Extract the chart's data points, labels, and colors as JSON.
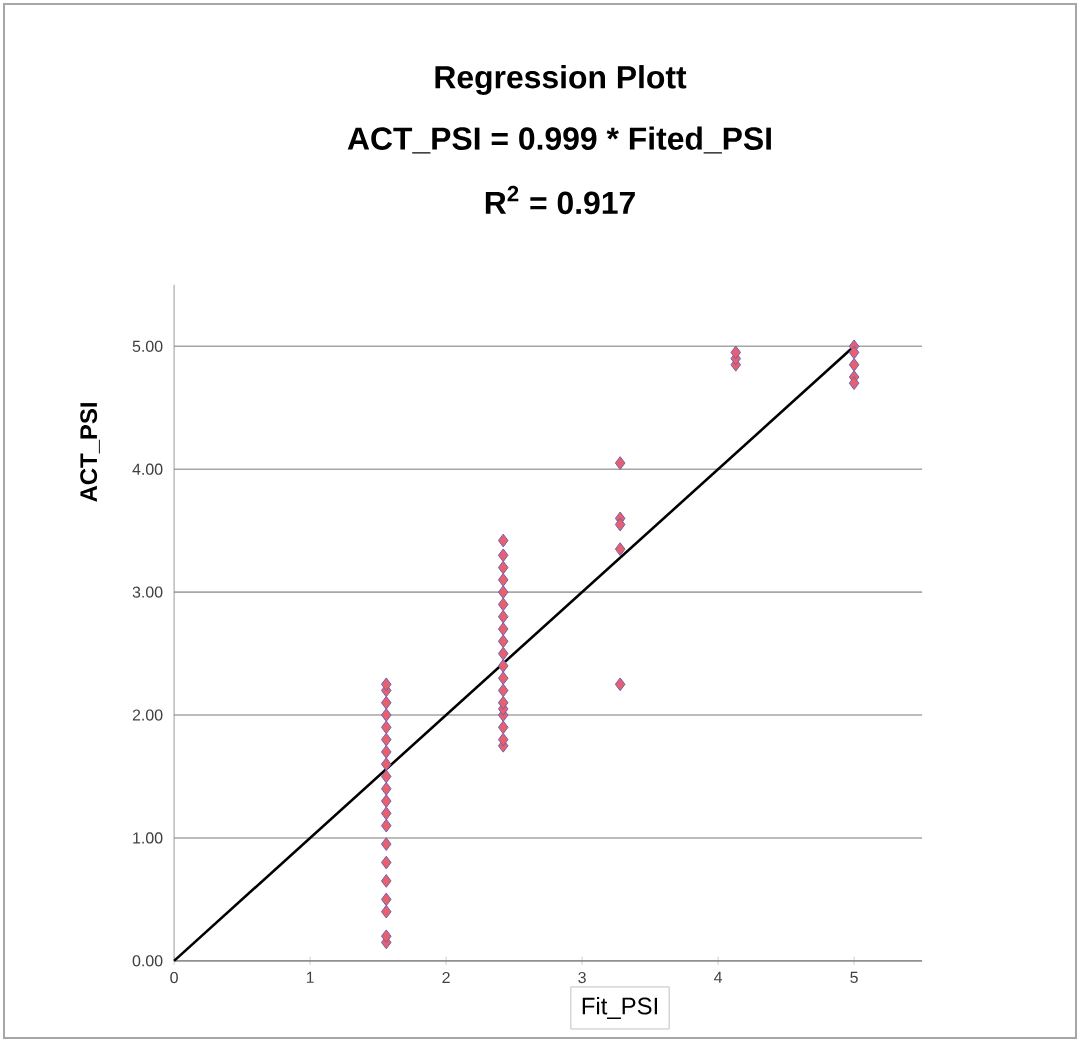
{
  "chart_data": {
    "type": "scatter",
    "title": "Regression Plott",
    "subtitle": "ACT_PSI = 0.999 * Fited_PSI",
    "annotations": [
      "R$^{2}$ = 0.917"
    ],
    "xlabel": "Fit_PSI",
    "ylabel": "ACT_PSI",
    "xlim": [
      0,
      5.5
    ],
    "ylim": [
      0,
      5.5
    ],
    "xticks": [
      0,
      1,
      2,
      3,
      4,
      5
    ],
    "yticks": [
      {
        "value": 0,
        "label": "0.00"
      },
      {
        "value": 1,
        "label": "1.00"
      },
      {
        "value": 2,
        "label": "2.00"
      },
      {
        "value": 3,
        "label": "3.00"
      },
      {
        "value": 4,
        "label": "4.00"
      },
      {
        "value": 5,
        "label": "5.00"
      }
    ],
    "grid": "y",
    "marker": "diamond",
    "series": [
      {
        "color": "#e8606e",
        "x": [
          1.56,
          1.56,
          1.56,
          1.56,
          1.56,
          1.56,
          1.56,
          1.56,
          1.56,
          1.56,
          1.56,
          1.56,
          1.56,
          1.56,
          1.56,
          1.56,
          1.56,
          1.56,
          1.56,
          1.56,
          2.42,
          2.42,
          2.42,
          2.42,
          2.42,
          2.42,
          2.42,
          2.42,
          2.42,
          2.42,
          2.42,
          2.42,
          2.42,
          2.42,
          2.42,
          2.42,
          2.42,
          2.42,
          2.42,
          3.28,
          3.28,
          3.28,
          3.28,
          3.28,
          4.13,
          4.13,
          4.13,
          5,
          5,
          5,
          5,
          5
        ],
        "values": [
          0.15,
          0.2,
          0.4,
          0.5,
          0.65,
          0.8,
          0.95,
          1.1,
          1.2,
          1.3,
          1.4,
          1.5,
          1.6,
          1.7,
          1.8,
          1.9,
          2.0,
          2.1,
          2.2,
          2.25,
          1.75,
          1.8,
          1.9,
          2.0,
          2.05,
          2.1,
          2.2,
          2.3,
          2.4,
          2.5,
          2.6,
          2.7,
          2.8,
          2.9,
          3.0,
          3.1,
          3.2,
          3.3,
          3.42,
          4.05,
          3.6,
          3.55,
          3.35,
          2.25,
          4.85,
          4.9,
          4.95,
          5.0,
          4.95,
          4.85,
          4.75,
          4.7
        ]
      },
      {
        "type": "line",
        "color": "#000000",
        "marker": "none",
        "x": [
          0,
          5
        ],
        "values": [
          0,
          5.0
        ]
      }
    ]
  }
}
